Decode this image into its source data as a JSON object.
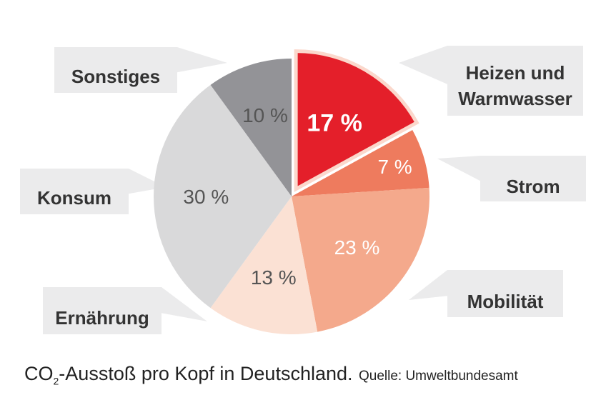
{
  "chart_data": {
    "type": "pie",
    "title": "CO2-Ausstoß pro Kopf in Deutschland.",
    "source": "Quelle: Umweltbundesamt",
    "categories": [
      "Heizen und Warmwasser",
      "Strom",
      "Mobilität",
      "Ernährung",
      "Konsum",
      "Sonstiges"
    ],
    "values": [
      17,
      7,
      23,
      13,
      30,
      10
    ],
    "value_labels": [
      "17 %",
      "7 %",
      "23 %",
      "13 %",
      "30 %",
      "10 %"
    ],
    "exploded": "Heizen und Warmwasser",
    "colors": [
      "#e41f2a",
      "#ee7b5e",
      "#f4a98c",
      "#fbe1d4",
      "#d9d9da",
      "#939397"
    ],
    "label_lines": {
      "Heizen und Warmwasser": [
        "Heizen und",
        "Warmwasser"
      ],
      "Strom": [
        "Strom"
      ],
      "Mobilität": [
        "Mobilität"
      ],
      "Ernährung": [
        "Ernährung"
      ],
      "Konsum": [
        "Konsum"
      ],
      "Sonstiges": [
        "Sonstiges"
      ]
    }
  },
  "caption": {
    "co": "CO",
    "sub": "2",
    "rest": "-Ausstoß pro Kopf in Deutschland.",
    "source": "Quelle: Umweltbundesamt"
  },
  "callout_color": "#ebebec"
}
